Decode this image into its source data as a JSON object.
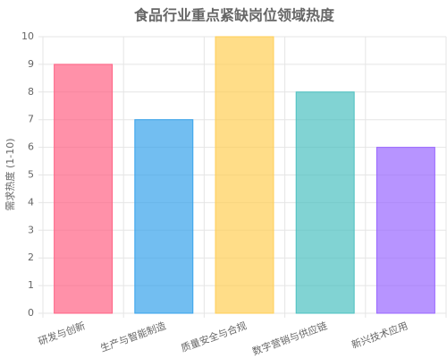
{
  "chart_data": {
    "type": "bar",
    "title": "食品行业重点紧缺岗位领域热度",
    "y_label": "需求热度 (1-10)",
    "categories": [
      "研发与创新",
      "生产与智能制造",
      "质量安全与合规",
      "数字营销与供应链",
      "新兴技术应用"
    ],
    "values": [
      9,
      7,
      10,
      8,
      6
    ],
    "colors": [
      "#ff6384",
      "#36a2eb",
      "#ffce56",
      "#4bc0c0",
      "#9966ff"
    ],
    "ylim": [
      0,
      10
    ],
    "yticks": [
      0,
      1,
      2,
      3,
      4,
      5,
      6,
      7,
      8,
      9,
      10
    ],
    "grid": true
  }
}
